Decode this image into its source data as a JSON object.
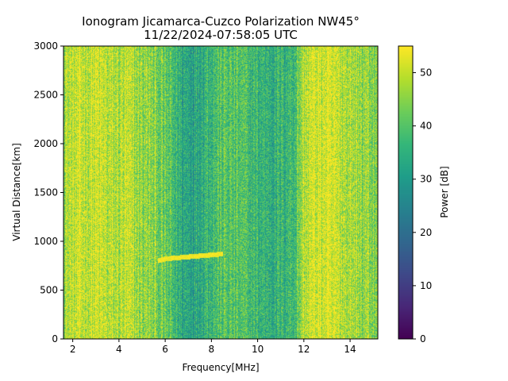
{
  "chart_data": {
    "type": "heatmap",
    "title": "Ionogram Jicamarca-Cuzco Polarization NW45°",
    "subtitle": "11/22/2024-07:58:05 UTC",
    "xlabel": "Frequency[MHz]",
    "ylabel": "Virtual Distance[km]",
    "xlim": [
      1.6,
      15.2
    ],
    "ylim": [
      0,
      3000
    ],
    "xticks": [
      2,
      4,
      6,
      8,
      10,
      12,
      14
    ],
    "yticks": [
      0,
      500,
      1000,
      1500,
      2000,
      2500,
      3000
    ],
    "colorbar": {
      "label": "Power [dB]",
      "range": [
        0,
        55
      ],
      "ticks": [
        0,
        10,
        20,
        30,
        40,
        50
      ],
      "colormap": "viridis"
    },
    "background_profile": [
      {
        "freq": 1.6,
        "db": 48
      },
      {
        "freq": 2.2,
        "db": 50
      },
      {
        "freq": 3.0,
        "db": 51
      },
      {
        "freq": 3.7,
        "db": 48
      },
      {
        "freq": 4.3,
        "db": 49
      },
      {
        "freq": 5.0,
        "db": 46
      },
      {
        "freq": 5.6,
        "db": 44
      },
      {
        "freq": 6.2,
        "db": 39
      },
      {
        "freq": 6.8,
        "db": 33
      },
      {
        "freq": 7.3,
        "db": 33
      },
      {
        "freq": 7.8,
        "db": 37
      },
      {
        "freq": 8.5,
        "db": 40
      },
      {
        "freq": 9.2,
        "db": 39
      },
      {
        "freq": 10.0,
        "db": 36
      },
      {
        "freq": 10.8,
        "db": 35
      },
      {
        "freq": 11.6,
        "db": 38
      },
      {
        "freq": 12.0,
        "db": 49
      },
      {
        "freq": 12.6,
        "db": 52
      },
      {
        "freq": 13.5,
        "db": 50
      },
      {
        "freq": 14.3,
        "db": 47
      },
      {
        "freq": 15.2,
        "db": 44
      }
    ],
    "echo_trace": [
      {
        "freq": 5.7,
        "km": 800
      },
      {
        "freq": 6.0,
        "km": 820
      },
      {
        "freq": 6.5,
        "km": 830
      },
      {
        "freq": 7.0,
        "km": 840
      },
      {
        "freq": 7.5,
        "km": 850
      },
      {
        "freq": 8.0,
        "km": 860
      },
      {
        "freq": 8.5,
        "km": 870
      }
    ]
  }
}
